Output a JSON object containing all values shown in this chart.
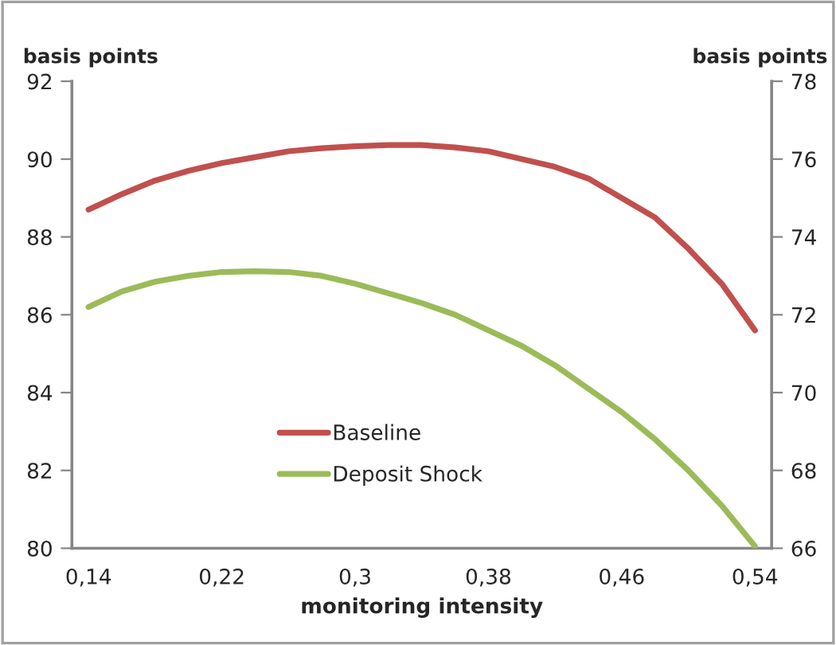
{
  "chart_data": {
    "type": "line",
    "xlabel": "monitoring intensity",
    "ylabel": "basis points",
    "y2label": "basis points",
    "categories": [
      "0,14",
      null,
      null,
      null,
      "0,22",
      null,
      null,
      null,
      "0,3",
      null,
      null,
      null,
      "0,38",
      null,
      null,
      null,
      "0,46",
      null,
      null,
      null,
      "0,54"
    ],
    "series": [
      {
        "name": "Baseline",
        "color": "#c0504d",
        "values": [
          88.7,
          89.1,
          89.45,
          89.7,
          89.9,
          90.05,
          90.2,
          90.28,
          90.33,
          90.36,
          90.36,
          90.3,
          90.2,
          90.0,
          89.8,
          89.5,
          89.0,
          88.5,
          87.7,
          86.8,
          85.6
        ]
      },
      {
        "name": "Deposit Shock",
        "color": "#9bbb59",
        "axis": "y2",
        "values": [
          72.2,
          72.6,
          72.85,
          73.0,
          73.1,
          73.12,
          73.1,
          73.0,
          72.8,
          72.55,
          72.3,
          72.0,
          71.6,
          71.2,
          70.7,
          70.1,
          69.5,
          68.8,
          68.0,
          67.1,
          66.05
        ]
      }
    ],
    "ylim": [
      80,
      92
    ],
    "yticks": [
      80,
      82,
      84,
      86,
      88,
      90,
      92
    ],
    "y2lim": [
      66,
      78
    ],
    "y2ticks": [
      66,
      68,
      70,
      72,
      74,
      76,
      78
    ],
    "grid": false,
    "legend": "bottom left",
    "marker": "none",
    "line_style": "solid"
  }
}
